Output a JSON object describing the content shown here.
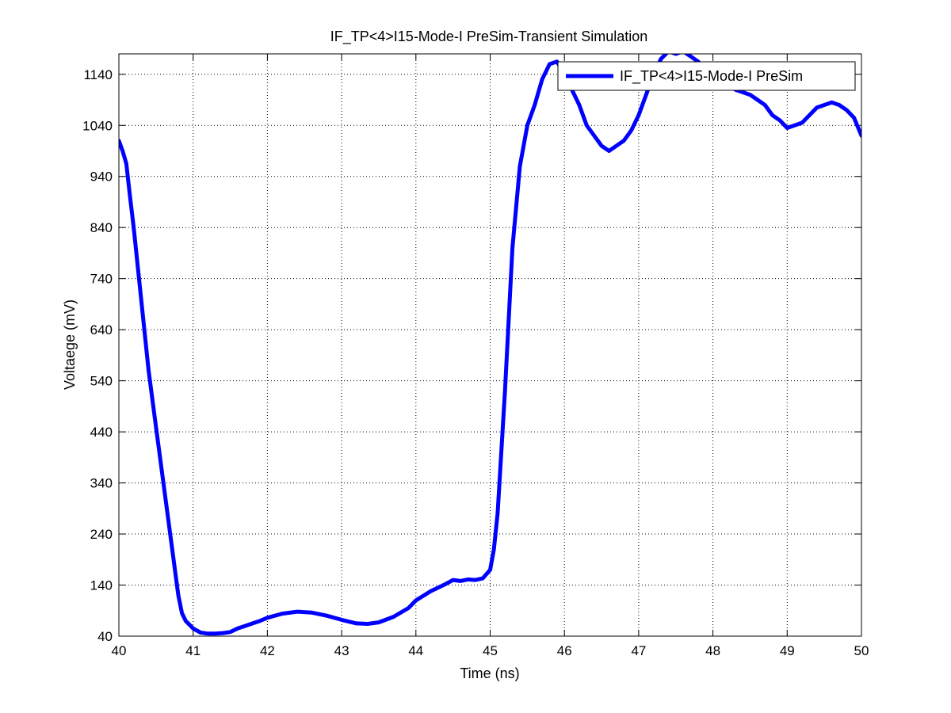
{
  "chart_data": {
    "type": "line",
    "title": "IF_TP<4>I15-Mode-I PreSim-Transient Simulation",
    "xlabel": "Time (ns)",
    "ylabel": "Voltaege (mV)",
    "xlim": [
      40,
      50
    ],
    "ylim": [
      40,
      1180
    ],
    "xticks": [
      40,
      41,
      42,
      43,
      44,
      45,
      46,
      47,
      48,
      49,
      50
    ],
    "yticks": [
      40,
      140,
      240,
      340,
      440,
      540,
      640,
      740,
      840,
      940,
      1040,
      1140
    ],
    "grid": true,
    "legend": {
      "placement": "top-right"
    },
    "series": [
      {
        "name": "IF_TP<4>I15-Mode-I PreSim",
        "color": "#0000ff",
        "x": [
          40.0,
          40.05,
          40.1,
          40.15,
          40.2,
          40.3,
          40.4,
          40.5,
          40.6,
          40.7,
          40.8,
          40.85,
          40.9,
          41.0,
          41.1,
          41.2,
          41.3,
          41.4,
          41.5,
          41.6,
          41.7,
          41.8,
          41.9,
          42.0,
          42.2,
          42.4,
          42.6,
          42.8,
          43.0,
          43.2,
          43.35,
          43.5,
          43.7,
          43.9,
          44.0,
          44.2,
          44.4,
          44.5,
          44.6,
          44.7,
          44.8,
          44.9,
          45.0,
          45.05,
          45.1,
          45.2,
          45.3,
          45.4,
          45.5,
          45.6,
          45.7,
          45.8,
          45.9,
          46.0,
          46.1,
          46.2,
          46.3,
          46.4,
          46.5,
          46.6,
          46.65,
          46.7,
          46.8,
          46.9,
          47.0,
          47.1,
          47.2,
          47.3,
          47.4,
          47.5,
          47.6,
          47.7,
          47.8,
          47.9,
          48.0,
          48.1,
          48.2,
          48.3,
          48.4,
          48.5,
          48.6,
          48.7,
          48.8,
          48.9,
          49.0,
          49.1,
          49.2,
          49.3,
          49.4,
          49.5,
          49.6,
          49.7,
          49.8,
          49.9,
          50.0
        ],
        "y": [
          1010,
          990,
          965,
          900,
          840,
          700,
          560,
          450,
          340,
          230,
          120,
          85,
          70,
          55,
          47,
          45,
          45,
          46,
          48,
          55,
          60,
          65,
          70,
          76,
          84,
          88,
          86,
          80,
          72,
          65,
          64,
          67,
          78,
          95,
          110,
          128,
          142,
          150,
          148,
          151,
          150,
          153,
          170,
          210,
          280,
          520,
          800,
          960,
          1040,
          1080,
          1130,
          1160,
          1165,
          1140,
          1110,
          1080,
          1040,
          1020,
          1000,
          990,
          995,
          1000,
          1010,
          1030,
          1060,
          1100,
          1140,
          1170,
          1185,
          1180,
          1185,
          1175,
          1165,
          1150,
          1140,
          1130,
          1120,
          1110,
          1105,
          1100,
          1090,
          1080,
          1060,
          1050,
          1035,
          1040,
          1045,
          1060,
          1075,
          1080,
          1085,
          1080,
          1070,
          1055,
          1020
        ]
      }
    ]
  }
}
